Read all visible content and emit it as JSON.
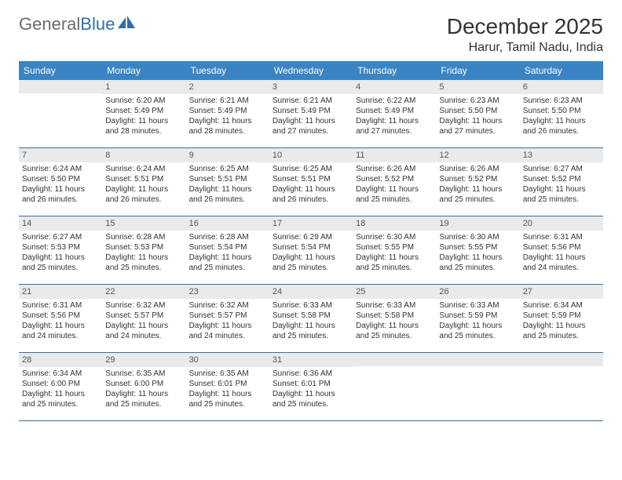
{
  "brand": {
    "text1": "General",
    "text2": "Blue",
    "color_gray": "#6b6b6b",
    "color_blue": "#2f6fa8",
    "logo_fill": "#2f6fa8"
  },
  "title": "December 2025",
  "location": "Harur, Tamil Nadu, India",
  "colors": {
    "header_bg": "#3b84c4",
    "header_text": "#ffffff",
    "daynum_bg": "#e9eaeb",
    "week_border": "#3b6ea0",
    "text": "#333333"
  },
  "day_headers": [
    "Sunday",
    "Monday",
    "Tuesday",
    "Wednesday",
    "Thursday",
    "Friday",
    "Saturday"
  ],
  "weeks": [
    [
      {
        "n": "",
        "sunrise": "",
        "sunset": "",
        "daylight": ""
      },
      {
        "n": "1",
        "sunrise": "Sunrise: 6:20 AM",
        "sunset": "Sunset: 5:49 PM",
        "daylight": "Daylight: 11 hours and 28 minutes."
      },
      {
        "n": "2",
        "sunrise": "Sunrise: 6:21 AM",
        "sunset": "Sunset: 5:49 PM",
        "daylight": "Daylight: 11 hours and 28 minutes."
      },
      {
        "n": "3",
        "sunrise": "Sunrise: 6:21 AM",
        "sunset": "Sunset: 5:49 PM",
        "daylight": "Daylight: 11 hours and 27 minutes."
      },
      {
        "n": "4",
        "sunrise": "Sunrise: 6:22 AM",
        "sunset": "Sunset: 5:49 PM",
        "daylight": "Daylight: 11 hours and 27 minutes."
      },
      {
        "n": "5",
        "sunrise": "Sunrise: 6:23 AM",
        "sunset": "Sunset: 5:50 PM",
        "daylight": "Daylight: 11 hours and 27 minutes."
      },
      {
        "n": "6",
        "sunrise": "Sunrise: 6:23 AM",
        "sunset": "Sunset: 5:50 PM",
        "daylight": "Daylight: 11 hours and 26 minutes."
      }
    ],
    [
      {
        "n": "7",
        "sunrise": "Sunrise: 6:24 AM",
        "sunset": "Sunset: 5:50 PM",
        "daylight": "Daylight: 11 hours and 26 minutes."
      },
      {
        "n": "8",
        "sunrise": "Sunrise: 6:24 AM",
        "sunset": "Sunset: 5:51 PM",
        "daylight": "Daylight: 11 hours and 26 minutes."
      },
      {
        "n": "9",
        "sunrise": "Sunrise: 6:25 AM",
        "sunset": "Sunset: 5:51 PM",
        "daylight": "Daylight: 11 hours and 26 minutes."
      },
      {
        "n": "10",
        "sunrise": "Sunrise: 6:25 AM",
        "sunset": "Sunset: 5:51 PM",
        "daylight": "Daylight: 11 hours and 26 minutes."
      },
      {
        "n": "11",
        "sunrise": "Sunrise: 6:26 AM",
        "sunset": "Sunset: 5:52 PM",
        "daylight": "Daylight: 11 hours and 25 minutes."
      },
      {
        "n": "12",
        "sunrise": "Sunrise: 6:26 AM",
        "sunset": "Sunset: 5:52 PM",
        "daylight": "Daylight: 11 hours and 25 minutes."
      },
      {
        "n": "13",
        "sunrise": "Sunrise: 6:27 AM",
        "sunset": "Sunset: 5:52 PM",
        "daylight": "Daylight: 11 hours and 25 minutes."
      }
    ],
    [
      {
        "n": "14",
        "sunrise": "Sunrise: 6:27 AM",
        "sunset": "Sunset: 5:53 PM",
        "daylight": "Daylight: 11 hours and 25 minutes."
      },
      {
        "n": "15",
        "sunrise": "Sunrise: 6:28 AM",
        "sunset": "Sunset: 5:53 PM",
        "daylight": "Daylight: 11 hours and 25 minutes."
      },
      {
        "n": "16",
        "sunrise": "Sunrise: 6:28 AM",
        "sunset": "Sunset: 5:54 PM",
        "daylight": "Daylight: 11 hours and 25 minutes."
      },
      {
        "n": "17",
        "sunrise": "Sunrise: 6:29 AM",
        "sunset": "Sunset: 5:54 PM",
        "daylight": "Daylight: 11 hours and 25 minutes."
      },
      {
        "n": "18",
        "sunrise": "Sunrise: 6:30 AM",
        "sunset": "Sunset: 5:55 PM",
        "daylight": "Daylight: 11 hours and 25 minutes."
      },
      {
        "n": "19",
        "sunrise": "Sunrise: 6:30 AM",
        "sunset": "Sunset: 5:55 PM",
        "daylight": "Daylight: 11 hours and 25 minutes."
      },
      {
        "n": "20",
        "sunrise": "Sunrise: 6:31 AM",
        "sunset": "Sunset: 5:56 PM",
        "daylight": "Daylight: 11 hours and 24 minutes."
      }
    ],
    [
      {
        "n": "21",
        "sunrise": "Sunrise: 6:31 AM",
        "sunset": "Sunset: 5:56 PM",
        "daylight": "Daylight: 11 hours and 24 minutes."
      },
      {
        "n": "22",
        "sunrise": "Sunrise: 6:32 AM",
        "sunset": "Sunset: 5:57 PM",
        "daylight": "Daylight: 11 hours and 24 minutes."
      },
      {
        "n": "23",
        "sunrise": "Sunrise: 6:32 AM",
        "sunset": "Sunset: 5:57 PM",
        "daylight": "Daylight: 11 hours and 24 minutes."
      },
      {
        "n": "24",
        "sunrise": "Sunrise: 6:33 AM",
        "sunset": "Sunset: 5:58 PM",
        "daylight": "Daylight: 11 hours and 25 minutes."
      },
      {
        "n": "25",
        "sunrise": "Sunrise: 6:33 AM",
        "sunset": "Sunset: 5:58 PM",
        "daylight": "Daylight: 11 hours and 25 minutes."
      },
      {
        "n": "26",
        "sunrise": "Sunrise: 6:33 AM",
        "sunset": "Sunset: 5:59 PM",
        "daylight": "Daylight: 11 hours and 25 minutes."
      },
      {
        "n": "27",
        "sunrise": "Sunrise: 6:34 AM",
        "sunset": "Sunset: 5:59 PM",
        "daylight": "Daylight: 11 hours and 25 minutes."
      }
    ],
    [
      {
        "n": "28",
        "sunrise": "Sunrise: 6:34 AM",
        "sunset": "Sunset: 6:00 PM",
        "daylight": "Daylight: 11 hours and 25 minutes."
      },
      {
        "n": "29",
        "sunrise": "Sunrise: 6:35 AM",
        "sunset": "Sunset: 6:00 PM",
        "daylight": "Daylight: 11 hours and 25 minutes."
      },
      {
        "n": "30",
        "sunrise": "Sunrise: 6:35 AM",
        "sunset": "Sunset: 6:01 PM",
        "daylight": "Daylight: 11 hours and 25 minutes."
      },
      {
        "n": "31",
        "sunrise": "Sunrise: 6:36 AM",
        "sunset": "Sunset: 6:01 PM",
        "daylight": "Daylight: 11 hours and 25 minutes."
      },
      {
        "n": "",
        "sunrise": "",
        "sunset": "",
        "daylight": ""
      },
      {
        "n": "",
        "sunrise": "",
        "sunset": "",
        "daylight": ""
      },
      {
        "n": "",
        "sunrise": "",
        "sunset": "",
        "daylight": ""
      }
    ]
  ]
}
